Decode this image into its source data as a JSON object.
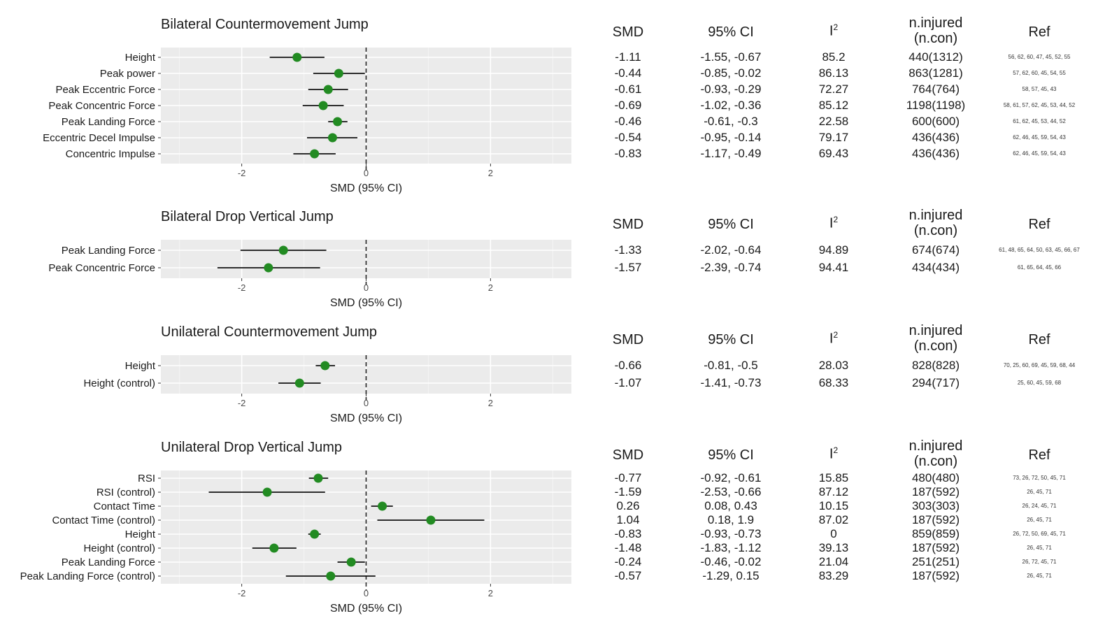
{
  "chart_data": [
    {
      "type": "forest",
      "title": "Bilateral Countermovement Jump",
      "xlabel": "SMD (95% CI)",
      "xlim": [
        -3.3,
        3.3
      ],
      "xticks": [
        "-2",
        "0",
        "2"
      ],
      "xtick_values": [
        -2,
        0,
        2
      ],
      "reference_line": 0,
      "columns": {
        "smd": "SMD",
        "ci": "95% CI",
        "i2": "I",
        "i2_sup": "2",
        "n1": "n.injured",
        "n2": "(n.con)",
        "ref": "Ref"
      },
      "rows": [
        {
          "label": "Height",
          "smd": -1.11,
          "lo": -1.55,
          "hi": -0.67,
          "smd_text": "-1.11",
          "ci_text": "-1.55, -0.67",
          "i2": "85.2",
          "n": "440(1312)",
          "ref": "56, 62, 60, 47, 45, 52, 55"
        },
        {
          "label": "Peak power",
          "smd": -0.44,
          "lo": -0.85,
          "hi": -0.02,
          "smd_text": "-0.44",
          "ci_text": "-0.85, -0.02",
          "i2": "86.13",
          "n": "863(1281)",
          "ref": "57, 62, 60, 45, 54, 55"
        },
        {
          "label": "Peak Eccentric Force",
          "smd": -0.61,
          "lo": -0.93,
          "hi": -0.29,
          "smd_text": "-0.61",
          "ci_text": "-0.93, -0.29",
          "i2": "72.27",
          "n": "764(764)",
          "ref": "58, 57, 45, 43"
        },
        {
          "label": "Peak Concentric Force",
          "smd": -0.69,
          "lo": -1.02,
          "hi": -0.36,
          "smd_text": "-0.69",
          "ci_text": "-1.02, -0.36",
          "i2": "85.12",
          "n": "1198(1198)",
          "ref": "58, 61, 57, 62, 45, 53, 44, 52"
        },
        {
          "label": "Peak Landing Force",
          "smd": -0.46,
          "lo": -0.61,
          "hi": -0.3,
          "smd_text": "-0.46",
          "ci_text": "-0.61, -0.3",
          "i2": "22.58",
          "n": "600(600)",
          "ref": "61, 62, 45, 53, 44, 52"
        },
        {
          "label": "Eccentric Decel Impulse",
          "smd": -0.54,
          "lo": -0.95,
          "hi": -0.14,
          "smd_text": "-0.54",
          "ci_text": "-0.95, -0.14",
          "i2": "79.17",
          "n": "436(436)",
          "ref": "62, 46, 45, 59, 54, 43"
        },
        {
          "label": "Concentric Impulse",
          "smd": -0.83,
          "lo": -1.17,
          "hi": -0.49,
          "smd_text": "-0.83",
          "ci_text": "-1.17, -0.49",
          "i2": "69.43",
          "n": "436(436)",
          "ref": "62, 46, 45, 59, 54, 43"
        }
      ]
    },
    {
      "type": "forest",
      "title": "Bilateral Drop Vertical Jump",
      "xlabel": "SMD (95% CI)",
      "xlim": [
        -3.3,
        3.3
      ],
      "xticks": [
        "-2",
        "0",
        "2"
      ],
      "xtick_values": [
        -2,
        0,
        2
      ],
      "reference_line": 0,
      "columns": {
        "smd": "SMD",
        "ci": "95% CI",
        "i2": "I",
        "i2_sup": "2",
        "n1": "n.injured",
        "n2": "(n.con)",
        "ref": "Ref"
      },
      "rows": [
        {
          "label": "Peak Landing Force",
          "smd": -1.33,
          "lo": -2.02,
          "hi": -0.64,
          "smd_text": "-1.33",
          "ci_text": "-2.02, -0.64",
          "i2": "94.89",
          "n": "674(674)",
          "ref": "61, 48, 65, 64, 50, 63, 45, 66, 67"
        },
        {
          "label": "Peak Concentric Force",
          "smd": -1.57,
          "lo": -2.39,
          "hi": -0.74,
          "smd_text": "-1.57",
          "ci_text": "-2.39, -0.74",
          "i2": "94.41",
          "n": "434(434)",
          "ref": "61, 65, 64, 45, 66"
        }
      ]
    },
    {
      "type": "forest",
      "title": "Unilateral Countermovement Jump",
      "xlabel": "SMD (95% CI)",
      "xlim": [
        -3.3,
        3.3
      ],
      "xticks": [
        "-2",
        "0",
        "2"
      ],
      "xtick_values": [
        -2,
        0,
        2
      ],
      "reference_line": 0,
      "columns": {
        "smd": "SMD",
        "ci": "95% CI",
        "i2": "I",
        "i2_sup": "2",
        "n1": "n.injured",
        "n2": "(n.con)",
        "ref": "Ref"
      },
      "rows": [
        {
          "label": "Height",
          "smd": -0.66,
          "lo": -0.81,
          "hi": -0.5,
          "smd_text": "-0.66",
          "ci_text": "-0.81, -0.5",
          "i2": "28.03",
          "n": "828(828)",
          "ref": "70, 25, 60, 69, 45, 59, 68, 44"
        },
        {
          "label": "Height (control)",
          "smd": -1.07,
          "lo": -1.41,
          "hi": -0.73,
          "smd_text": "-1.07",
          "ci_text": "-1.41, -0.73",
          "i2": "68.33",
          "n": "294(717)",
          "ref": "25, 60, 45, 59, 68"
        }
      ]
    },
    {
      "type": "forest",
      "title": "Unilateral Drop Vertical Jump",
      "xlabel": "SMD (95% CI)",
      "xlim": [
        -3.3,
        3.3
      ],
      "xticks": [
        "-2",
        "0",
        "2"
      ],
      "xtick_values": [
        -2,
        0,
        2
      ],
      "reference_line": 0,
      "columns": {
        "smd": "SMD",
        "ci": "95% CI",
        "i2": "I",
        "i2_sup": "2",
        "n1": "n.injured",
        "n2": "(n.con)",
        "ref": "Ref"
      },
      "rows": [
        {
          "label": "RSI",
          "smd": -0.77,
          "lo": -0.92,
          "hi": -0.61,
          "smd_text": "-0.77",
          "ci_text": "-0.92, -0.61",
          "i2": "15.85",
          "n": "480(480)",
          "ref": "73, 26, 72, 50, 45, 71"
        },
        {
          "label": "RSI (control)",
          "smd": -1.59,
          "lo": -2.53,
          "hi": -0.66,
          "smd_text": "-1.59",
          "ci_text": "-2.53, -0.66",
          "i2": "87.12",
          "n": "187(592)",
          "ref": "26, 45, 71"
        },
        {
          "label": "Contact Time",
          "smd": 0.26,
          "lo": 0.08,
          "hi": 0.43,
          "smd_text": "0.26",
          "ci_text": "0.08, 0.43",
          "i2": "10.15",
          "n": "303(303)",
          "ref": "26, 24, 45, 71"
        },
        {
          "label": "Contact Time (control)",
          "smd": 1.04,
          "lo": 0.18,
          "hi": 1.9,
          "smd_text": "1.04",
          "ci_text": "0.18, 1.9",
          "i2": "87.02",
          "n": "187(592)",
          "ref": "26, 45, 71"
        },
        {
          "label": "Height",
          "smd": -0.83,
          "lo": -0.93,
          "hi": -0.73,
          "smd_text": "-0.83",
          "ci_text": "-0.93, -0.73",
          "i2": "0",
          "n": "859(859)",
          "ref": "26, 72, 50, 69, 45, 71"
        },
        {
          "label": "Height (control)",
          "smd": -1.48,
          "lo": -1.83,
          "hi": -1.12,
          "smd_text": "-1.48",
          "ci_text": "-1.83, -1.12",
          "i2": "39.13",
          "n": "187(592)",
          "ref": "26, 45, 71"
        },
        {
          "label": "Peak Landing Force",
          "smd": -0.24,
          "lo": -0.46,
          "hi": -0.02,
          "smd_text": "-0.24",
          "ci_text": "-0.46, -0.02",
          "i2": "21.04",
          "n": "251(251)",
          "ref": "26, 72, 45, 71"
        },
        {
          "label": "Peak Landing Force (control)",
          "smd": -0.57,
          "lo": -1.29,
          "hi": 0.15,
          "smd_text": "-0.57",
          "ci_text": "-1.29, 0.15",
          "i2": "83.29",
          "n": "187(592)",
          "ref": "26, 45, 71"
        }
      ]
    }
  ],
  "colors": {
    "point": "#228b22",
    "panel": "#ebebeb",
    "grid": "#ffffff",
    "ci_line": "#111111"
  }
}
